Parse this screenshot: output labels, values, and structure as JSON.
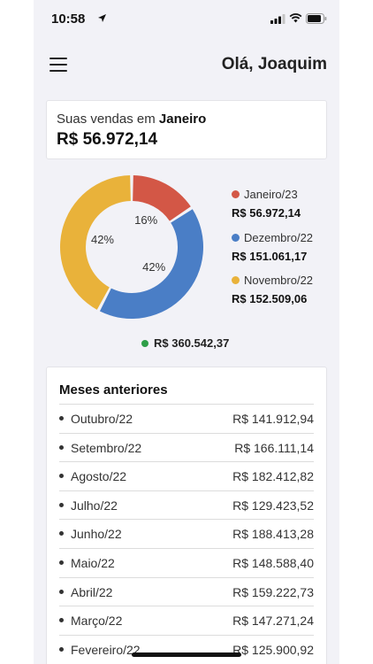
{
  "status_bar": {
    "time": "10:58"
  },
  "header": {
    "greeting": "Olá, Joaquim"
  },
  "sales_summary": {
    "label_prefix": "Suas vendas em",
    "month": "Janeiro",
    "value": "R$ 56.972,14"
  },
  "chart_data": {
    "type": "pie",
    "series": [
      {
        "name": "Janeiro/23",
        "value": 56972.14,
        "percent": 16,
        "percent_label": "16%",
        "amount": "R$ 56.972,14",
        "color": "#d35746"
      },
      {
        "name": "Dezembro/22",
        "value": 151061.17,
        "percent": 42,
        "percent_label": "42%",
        "amount": "R$ 151.061,17",
        "color": "#4a7ec6"
      },
      {
        "name": "Novembro/22",
        "value": 152509.06,
        "percent": 42,
        "percent_label": "42%",
        "amount": "R$ 152.509,06",
        "color": "#e9b23a"
      }
    ]
  },
  "total": {
    "value": "R$ 360.542,37",
    "color": "#2e9e48"
  },
  "previous_months": {
    "title": "Meses anteriores",
    "rows": [
      {
        "month": "Outubro/22",
        "value": "R$ 141.912,94"
      },
      {
        "month": "Setembro/22",
        "value": "R$ 166.111,14"
      },
      {
        "month": "Agosto/22",
        "value": "R$ 182.412,82"
      },
      {
        "month": "Julho/22",
        "value": "R$ 129.423,52"
      },
      {
        "month": "Junho/22",
        "value": "R$ 188.413,28"
      },
      {
        "month": "Maio/22",
        "value": "R$ 148.588,40"
      },
      {
        "month": "Abril/22",
        "value": "R$ 159.222,73"
      },
      {
        "month": "Março/22",
        "value": "R$ 147.271,24"
      },
      {
        "month": "Fevereiro/22",
        "value": "R$ 125.900,92"
      }
    ]
  },
  "icons": {
    "status": [
      "location-icon",
      "signal-icon",
      "wifi-icon",
      "battery-icon"
    ],
    "menu": "hamburger-menu-icon"
  }
}
